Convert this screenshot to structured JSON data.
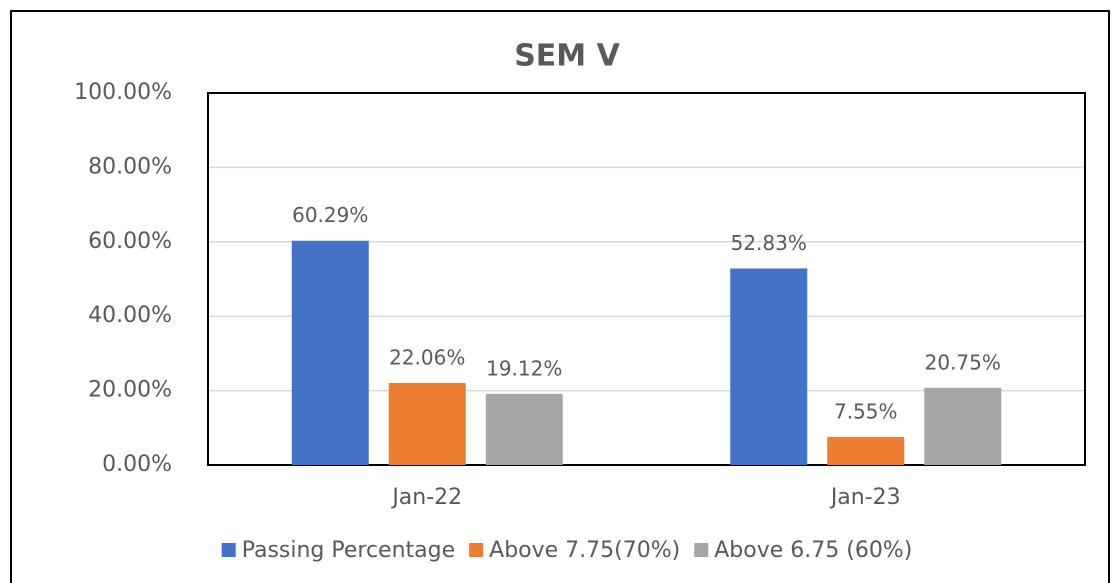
{
  "chart_data": {
    "type": "bar",
    "title": "SEM V",
    "categories": [
      "Jan-22",
      "Jan-23"
    ],
    "series": [
      {
        "name": "Passing Percentage",
        "color": "#4472c4",
        "values": [
          60.29,
          52.83
        ],
        "value_labels": [
          "60.29%",
          "52.83%"
        ]
      },
      {
        "name": "Above 7.75(70%)",
        "color": "#ed7d31",
        "values": [
          22.06,
          7.55
        ],
        "value_labels": [
          "22.06%",
          "7.55%"
        ]
      },
      {
        "name": "Above 6.75 (60%)",
        "color": "#a5a5a5",
        "values": [
          19.12,
          20.75
        ],
        "value_labels": [
          "19.12%",
          "20.75%"
        ]
      }
    ],
    "ylim": [
      0,
      100
    ],
    "yticks": [
      {
        "value": 0,
        "label": "0.00%"
      },
      {
        "value": 20,
        "label": "20.00%"
      },
      {
        "value": 40,
        "label": "40.00%"
      },
      {
        "value": 60,
        "label": "60.00%"
      },
      {
        "value": 80,
        "label": "80.00%"
      },
      {
        "value": 100,
        "label": "100.00%"
      }
    ],
    "grid": true,
    "legend": "bottom"
  }
}
